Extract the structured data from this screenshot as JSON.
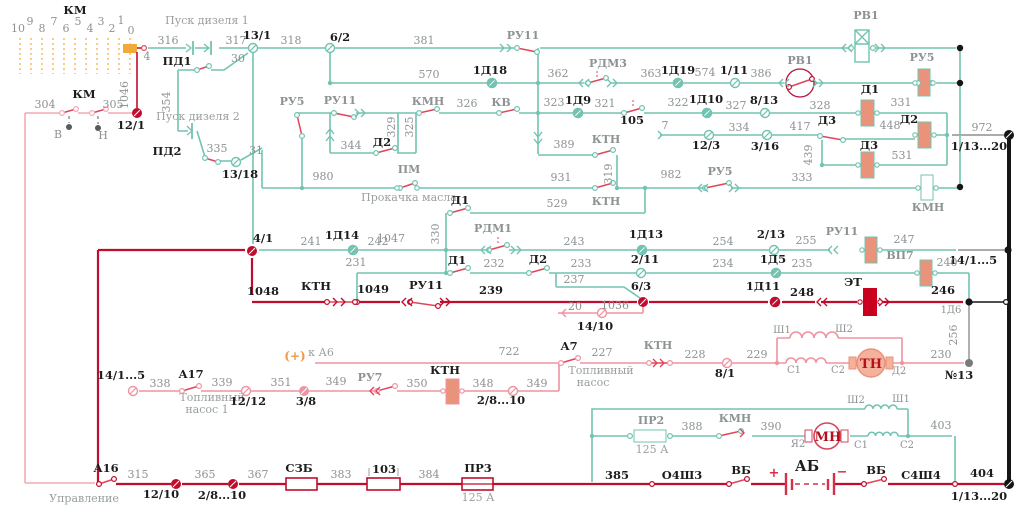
{
  "diagram_type": "locomotive diesel-start control circuit schematic",
  "colors": {
    "teal_wire": "#72c3b1",
    "crimson_bus": "#c00d2e",
    "pink_wire": "#ef93a0",
    "pink_light": "#f4aab4",
    "contact_red": "#e2455a",
    "orange": "#f2a93b",
    "gray_wire": "#8f8f8f",
    "black_bus": "#151515",
    "coil_fill": "#e9937b",
    "et_coil": "#c9001e",
    "motor_fill": "#f5b19b"
  },
  "labels": [
    [
      "КМ",
      75,
      14,
      "b"
    ],
    [
      "10",
      18,
      32,
      "w"
    ],
    [
      "9",
      30,
      25,
      "w"
    ],
    [
      "8",
      42,
      32,
      "w"
    ],
    [
      "7",
      54,
      25,
      "w"
    ],
    [
      "6",
      66,
      32,
      "w"
    ],
    [
      "5",
      78,
      25,
      "w"
    ],
    [
      "4",
      90,
      32,
      "w"
    ],
    [
      "3",
      101,
      25,
      "w"
    ],
    [
      "2",
      112,
      32,
      "w"
    ],
    [
      "1",
      121,
      24,
      "w"
    ],
    [
      "0",
      131,
      34,
      "w"
    ],
    [
      "4",
      147,
      60,
      "w"
    ],
    [
      "1046",
      128,
      95,
      "wr"
    ],
    [
      "КМ",
      84,
      98,
      "b"
    ],
    [
      "304",
      45,
      108,
      "w"
    ],
    [
      "305",
      113,
      108,
      "w"
    ],
    [
      "12/1",
      131,
      129,
      "b"
    ],
    [
      "В",
      58,
      138,
      "w"
    ],
    [
      "Н",
      103,
      139,
      "w"
    ],
    [
      "Пуск дизеля 1",
      207,
      24,
      "cap"
    ],
    [
      "316",
      168,
      44,
      "w"
    ],
    [
      "ПД1",
      177,
      65,
      "b"
    ],
    [
      "317",
      236,
      44,
      "w"
    ],
    [
      "13/1",
      257,
      39,
      "b"
    ],
    [
      "30",
      238,
      62,
      "w"
    ],
    [
      "318",
      291,
      44,
      "w"
    ],
    [
      "6/2",
      340,
      41,
      "b"
    ],
    [
      "381",
      424,
      44,
      "w"
    ],
    [
      "Пуск дизеля 2",
      198,
      120,
      "cap"
    ],
    [
      "354",
      170,
      102,
      "wr"
    ],
    [
      "ПД2",
      167,
      155,
      "b"
    ],
    [
      "335",
      217,
      152,
      "w"
    ],
    [
      "31",
      256,
      154,
      "w"
    ],
    [
      "13/18",
      240,
      178,
      "b"
    ],
    [
      "РУ11",
      523,
      39,
      "g"
    ],
    [
      "570",
      429,
      78,
      "w"
    ],
    [
      "1Д18",
      490,
      74,
      "b"
    ],
    [
      "362",
      558,
      77,
      "w"
    ],
    [
      "РДМ3",
      608,
      67,
      "g"
    ],
    [
      "363",
      651,
      77,
      "w"
    ],
    [
      "1Д19",
      678,
      74,
      "b"
    ],
    [
      "574",
      705,
      76,
      "w"
    ],
    [
      "1/11",
      734,
      74,
      "b"
    ],
    [
      "386",
      761,
      77,
      "w"
    ],
    [
      "РВ1",
      866,
      19,
      "g"
    ],
    [
      "РВ1",
      800,
      64,
      "g"
    ],
    [
      "РУ5",
      922,
      61,
      "g"
    ],
    [
      "972",
      982,
      131,
      "w"
    ],
    [
      "1/13...20",
      979,
      150,
      "b"
    ],
    [
      "РУ5",
      292,
      105,
      "g"
    ],
    [
      "РУ11",
      340,
      104,
      "g"
    ],
    [
      "329",
      395,
      127,
      "wr"
    ],
    [
      "325",
      413,
      127,
      "wr"
    ],
    [
      "КМН",
      428,
      105,
      "g"
    ],
    [
      "326",
      467,
      107,
      "w"
    ],
    [
      "КВ",
      501,
      106,
      "g"
    ],
    [
      "323",
      554,
      106,
      "w"
    ],
    [
      "1Д9",
      578,
      104,
      "b"
    ],
    [
      "321",
      605,
      107,
      "w"
    ],
    [
      "105",
      632,
      124,
      "b"
    ],
    [
      "322",
      678,
      106,
      "w"
    ],
    [
      "1Д10",
      706,
      103,
      "b"
    ],
    [
      "327",
      736,
      109,
      "w"
    ],
    [
      "8/13",
      764,
      104,
      "b"
    ],
    [
      "344",
      351,
      149,
      "w"
    ],
    [
      "Д2",
      382,
      146,
      "b"
    ],
    [
      "7",
      665,
      129,
      "w"
    ],
    [
      "334",
      739,
      131,
      "w"
    ],
    [
      "12/3",
      706,
      149,
      "b"
    ],
    [
      "3/16",
      765,
      150,
      "b"
    ],
    [
      "417",
      800,
      130,
      "w"
    ],
    [
      "Д3",
      827,
      124,
      "b"
    ],
    [
      "448",
      890,
      129,
      "w"
    ],
    [
      "Д2",
      909,
      123,
      "b"
    ],
    [
      "439",
      812,
      155,
      "wr"
    ],
    [
      "Д3",
      869,
      149,
      "b"
    ],
    [
      "531",
      902,
      159,
      "w"
    ],
    [
      "Д1",
      870,
      93,
      "b"
    ],
    [
      "328",
      820,
      109,
      "w"
    ],
    [
      "331",
      901,
      106,
      "w"
    ],
    [
      "333",
      802,
      181,
      "w"
    ],
    [
      "КМН",
      928,
      211,
      "g"
    ],
    [
      "980",
      323,
      180,
      "w"
    ],
    [
      "ПМ",
      409,
      173,
      "g"
    ],
    [
      "Прокачка масла",
      409,
      201,
      "cap"
    ],
    [
      "931",
      561,
      181,
      "w"
    ],
    [
      "389",
      564,
      148,
      "w"
    ],
    [
      "КТН",
      606,
      143,
      "g"
    ],
    [
      "319",
      612,
      174,
      "wr"
    ],
    [
      "КТН",
      606,
      205,
      "g"
    ],
    [
      "982",
      671,
      178,
      "w"
    ],
    [
      "РУ5",
      720,
      175,
      "g"
    ],
    [
      "Д1",
      460,
      204,
      "b"
    ],
    [
      "529",
      557,
      207,
      "w"
    ],
    [
      "1047",
      391,
      242,
      "w"
    ],
    [
      "4/1",
      263,
      242,
      "b"
    ],
    [
      "241",
      311,
      245,
      "w"
    ],
    [
      "1Д14",
      342,
      239,
      "b"
    ],
    [
      "242",
      378,
      245,
      "w"
    ],
    [
      "330",
      439,
      234,
      "wr"
    ],
    [
      "РДМ1",
      493,
      232,
      "g"
    ],
    [
      "243",
      574,
      245,
      "w"
    ],
    [
      "1Д13",
      646,
      238,
      "b"
    ],
    [
      "254",
      723,
      245,
      "w"
    ],
    [
      "2/13",
      771,
      238,
      "b"
    ],
    [
      "255",
      806,
      244,
      "w"
    ],
    [
      "РУ11",
      842,
      235,
      "g"
    ],
    [
      "247",
      904,
      243,
      "w"
    ],
    [
      "14/1...5",
      973,
      264,
      "b"
    ],
    [
      "231",
      356,
      266,
      "w"
    ],
    [
      "Д1",
      457,
      264,
      "b"
    ],
    [
      "232",
      494,
      267,
      "w"
    ],
    [
      "Д2",
      538,
      263,
      "b"
    ],
    [
      "233",
      581,
      267,
      "w"
    ],
    [
      "2/11",
      645,
      263,
      "b"
    ],
    [
      "234",
      723,
      267,
      "w"
    ],
    [
      "1Д5",
      773,
      263,
      "b"
    ],
    [
      "235",
      802,
      267,
      "w"
    ],
    [
      "ВП7",
      900,
      259,
      "g"
    ],
    [
      "240",
      947,
      266,
      "w"
    ],
    [
      "237",
      574,
      283,
      "w"
    ],
    [
      "1048",
      263,
      295,
      "b"
    ],
    [
      "КТН",
      316,
      290,
      "b"
    ],
    [
      "1049",
      373,
      293,
      "b"
    ],
    [
      "РУ11",
      426,
      289,
      "b"
    ],
    [
      "239",
      491,
      294,
      "b"
    ],
    [
      "6/3",
      641,
      290,
      "b"
    ],
    [
      "1Д11",
      763,
      290,
      "b"
    ],
    [
      "248",
      802,
      296,
      "b"
    ],
    [
      "ЭТ",
      853,
      286,
      "b"
    ],
    [
      "246",
      943,
      294,
      "b"
    ],
    [
      "1Д6",
      951,
      313,
      "ws"
    ],
    [
      "256",
      957,
      335,
      "wr"
    ],
    [
      "20",
      575,
      310,
      "w"
    ],
    [
      "1036",
      615,
      309,
      "w"
    ],
    [
      "14/10",
      595,
      330,
      "b"
    ],
    [
      "(+)",
      295,
      360,
      "or"
    ],
    [
      "к А6",
      321,
      356,
      "cap"
    ],
    [
      "722",
      509,
      355,
      "w"
    ],
    [
      "А7",
      569,
      350,
      "b"
    ],
    [
      "Топливный",
      601,
      374,
      "cap"
    ],
    [
      "насос",
      593,
      386,
      "cap"
    ],
    [
      "227",
      602,
      356,
      "w"
    ],
    [
      "КТН",
      658,
      349,
      "g"
    ],
    [
      "228",
      695,
      358,
      "w"
    ],
    [
      "8/1",
      725,
      377,
      "b"
    ],
    [
      "229",
      757,
      358,
      "w"
    ],
    [
      "Ш1",
      782,
      333,
      "ws"
    ],
    [
      "Ш2",
      844,
      332,
      "ws"
    ],
    [
      "С1",
      794,
      373,
      "ws"
    ],
    [
      "С2",
      838,
      373,
      "ws"
    ],
    [
      "ТН",
      871,
      368,
      "rb"
    ],
    [
      "Д2",
      899,
      374,
      "ws"
    ],
    [
      "230",
      941,
      358,
      "w"
    ],
    [
      "№13",
      959,
      379,
      "b"
    ],
    [
      "14/1...5",
      121,
      379,
      "b"
    ],
    [
      "338",
      160,
      387,
      "w"
    ],
    [
      "А17",
      191,
      378,
      "b"
    ],
    [
      "339",
      222,
      386,
      "w"
    ],
    [
      "Топливный",
      212,
      401,
      "cap"
    ],
    [
      "насос 1",
      207,
      413,
      "cap"
    ],
    [
      "12/12",
      248,
      405,
      "b"
    ],
    [
      "351",
      281,
      386,
      "w"
    ],
    [
      "3/8",
      306,
      405,
      "b"
    ],
    [
      "349",
      336,
      385,
      "w"
    ],
    [
      "РУ7",
      370,
      381,
      "g"
    ],
    [
      "350",
      417,
      387,
      "w"
    ],
    [
      "КТН",
      445,
      374,
      "b"
    ],
    [
      "348",
      483,
      387,
      "w"
    ],
    [
      "2/8...10",
      501,
      404,
      "b"
    ],
    [
      "349",
      537,
      387,
      "w"
    ],
    [
      "ПР2",
      651,
      424,
      "g"
    ],
    [
      "125 А",
      652,
      453,
      "cap"
    ],
    [
      "388",
      692,
      430,
      "w"
    ],
    [
      "КМН",
      735,
      422,
      "g"
    ],
    [
      "390",
      771,
      430,
      "w"
    ],
    [
      "Я2",
      798,
      447,
      "ws"
    ],
    [
      "Ш2",
      856,
      403,
      "ws"
    ],
    [
      "Ш1",
      901,
      402,
      "ws"
    ],
    [
      "С1",
      861,
      448,
      "ws"
    ],
    [
      "С2",
      907,
      448,
      "ws"
    ],
    [
      "МН",
      828,
      441,
      "rb"
    ],
    [
      "403",
      941,
      429,
      "w"
    ],
    [
      "А16",
      106,
      472,
      "b"
    ],
    [
      "Управление",
      84,
      502,
      "cap"
    ],
    [
      "315",
      138,
      478,
      "w"
    ],
    [
      "12/10",
      161,
      498,
      "b"
    ],
    [
      "365",
      205,
      478,
      "w"
    ],
    [
      "2/8...10",
      222,
      499,
      "b"
    ],
    [
      "367",
      258,
      478,
      "w"
    ],
    [
      "СЗБ",
      299,
      472,
      "b"
    ],
    [
      "383",
      341,
      478,
      "w"
    ],
    [
      "103",
      384,
      473,
      "b"
    ],
    [
      "384",
      429,
      478,
      "w"
    ],
    [
      "ПР3",
      478,
      472,
      "b"
    ],
    [
      "125 А",
      478,
      501,
      "cap"
    ],
    [
      "385",
      617,
      479,
      "b"
    ],
    [
      "О4Ш3",
      682,
      479,
      "b"
    ],
    [
      "ВБ",
      741,
      474,
      "b"
    ],
    [
      "+",
      774,
      477,
      "plus"
    ],
    [
      "АБ",
      807,
      471,
      "ab"
    ],
    [
      "−",
      842,
      476,
      "plus"
    ],
    [
      "ВБ",
      876,
      474,
      "b"
    ],
    [
      "С4Ш4",
      921,
      479,
      "b"
    ],
    [
      "404",
      982,
      477,
      "b"
    ],
    [
      "1/13...20",
      979,
      500,
      "b"
    ]
  ]
}
